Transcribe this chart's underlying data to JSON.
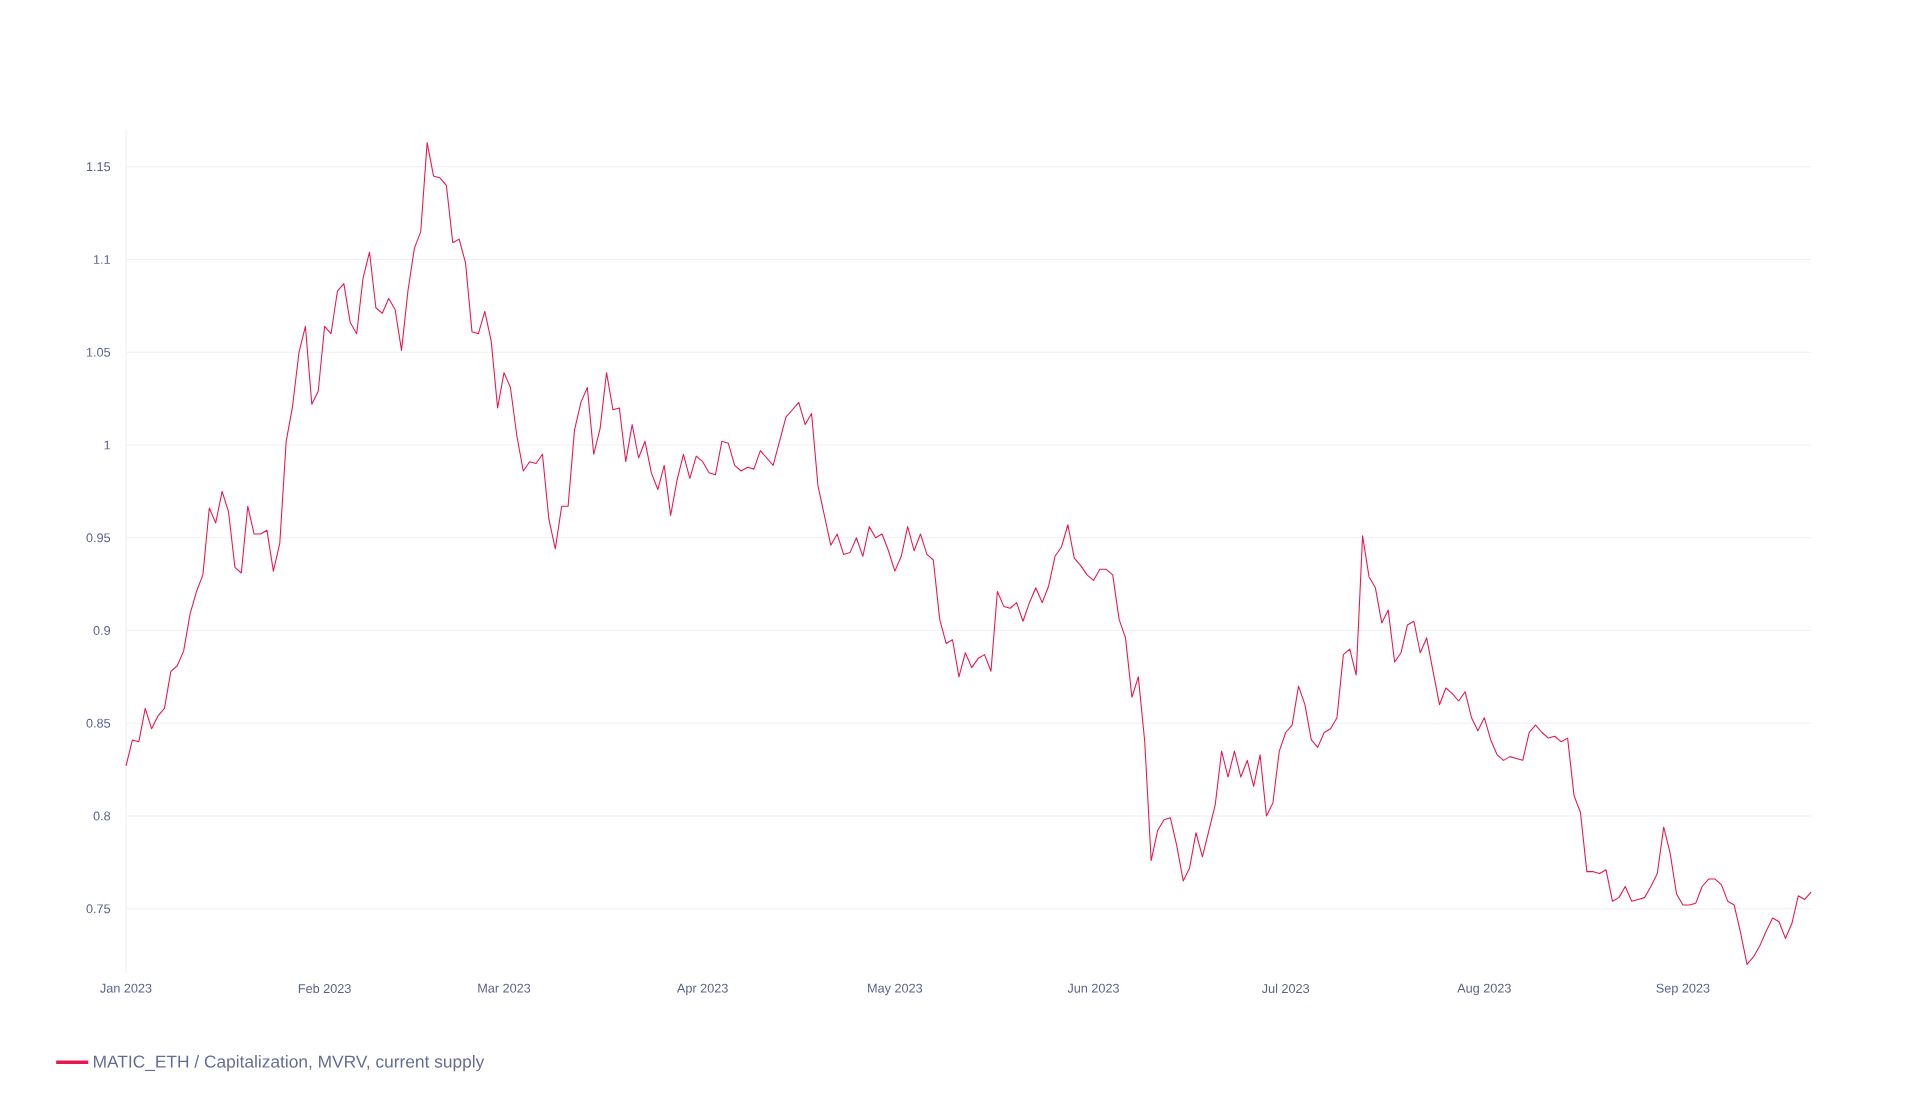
{
  "chart_data": {
    "type": "line",
    "x": [
      "2023-01-01",
      "2023-01-02",
      "2023-01-03",
      "2023-01-04",
      "2023-01-05",
      "2023-01-06",
      "2023-01-07",
      "2023-01-08",
      "2023-01-09",
      "2023-01-10",
      "2023-01-11",
      "2023-01-12",
      "2023-01-13",
      "2023-01-14",
      "2023-01-15",
      "2023-01-16",
      "2023-01-17",
      "2023-01-18",
      "2023-01-19",
      "2023-01-20",
      "2023-01-21",
      "2023-01-22",
      "2023-01-23",
      "2023-01-24",
      "2023-01-25",
      "2023-01-26",
      "2023-01-27",
      "2023-01-28",
      "2023-01-29",
      "2023-01-30",
      "2023-01-31",
      "2023-02-01",
      "2023-02-02",
      "2023-02-03",
      "2023-02-04",
      "2023-02-05",
      "2023-02-06",
      "2023-02-07",
      "2023-02-08",
      "2023-02-09",
      "2023-02-10",
      "2023-02-11",
      "2023-02-12",
      "2023-02-13",
      "2023-02-14",
      "2023-02-15",
      "2023-02-16",
      "2023-02-17",
      "2023-02-18",
      "2023-02-19",
      "2023-02-20",
      "2023-02-21",
      "2023-02-22",
      "2023-02-23",
      "2023-02-24",
      "2023-02-25",
      "2023-02-26",
      "2023-02-27",
      "2023-02-28",
      "2023-03-01",
      "2023-03-02",
      "2023-03-03",
      "2023-03-04",
      "2023-03-05",
      "2023-03-06",
      "2023-03-07",
      "2023-03-08",
      "2023-03-09",
      "2023-03-10",
      "2023-03-11",
      "2023-03-12",
      "2023-03-13",
      "2023-03-14",
      "2023-03-15",
      "2023-03-16",
      "2023-03-17",
      "2023-03-18",
      "2023-03-19",
      "2023-03-20",
      "2023-03-21",
      "2023-03-22",
      "2023-03-23",
      "2023-03-24",
      "2023-03-25",
      "2023-03-26",
      "2023-03-27",
      "2023-03-28",
      "2023-03-29",
      "2023-03-30",
      "2023-03-31",
      "2023-04-01",
      "2023-04-02",
      "2023-04-03",
      "2023-04-04",
      "2023-04-05",
      "2023-04-06",
      "2023-04-07",
      "2023-04-08",
      "2023-04-09",
      "2023-04-10",
      "2023-04-11",
      "2023-04-12",
      "2023-04-13",
      "2023-04-14",
      "2023-04-15",
      "2023-04-16",
      "2023-04-17",
      "2023-04-18",
      "2023-04-19",
      "2023-04-20",
      "2023-04-21",
      "2023-04-22",
      "2023-04-23",
      "2023-04-24",
      "2023-04-25",
      "2023-04-26",
      "2023-04-27",
      "2023-04-28",
      "2023-04-29",
      "2023-04-30",
      "2023-05-01",
      "2023-05-02",
      "2023-05-03",
      "2023-05-04",
      "2023-05-05",
      "2023-05-06",
      "2023-05-07",
      "2023-05-08",
      "2023-05-09",
      "2023-05-10",
      "2023-05-11",
      "2023-05-12",
      "2023-05-13",
      "2023-05-14",
      "2023-05-15",
      "2023-05-16",
      "2023-05-17",
      "2023-05-18",
      "2023-05-19",
      "2023-05-20",
      "2023-05-21",
      "2023-05-22",
      "2023-05-23",
      "2023-05-24",
      "2023-05-25",
      "2023-05-26",
      "2023-05-27",
      "2023-05-28",
      "2023-05-29",
      "2023-05-30",
      "2023-05-31",
      "2023-06-01",
      "2023-06-02",
      "2023-06-03",
      "2023-06-04",
      "2023-06-05",
      "2023-06-06",
      "2023-06-07",
      "2023-06-08",
      "2023-06-09",
      "2023-06-10",
      "2023-06-11",
      "2023-06-12",
      "2023-06-13",
      "2023-06-14",
      "2023-06-15",
      "2023-06-16",
      "2023-06-17",
      "2023-06-18",
      "2023-06-19",
      "2023-06-20",
      "2023-06-21",
      "2023-06-22",
      "2023-06-23",
      "2023-06-24",
      "2023-06-25",
      "2023-06-26",
      "2023-06-27",
      "2023-06-28",
      "2023-06-29",
      "2023-06-30",
      "2023-07-01",
      "2023-07-02",
      "2023-07-03",
      "2023-07-04",
      "2023-07-05",
      "2023-07-06",
      "2023-07-07",
      "2023-07-08",
      "2023-07-09",
      "2023-07-10",
      "2023-07-11",
      "2023-07-12",
      "2023-07-13",
      "2023-07-14",
      "2023-07-15",
      "2023-07-16",
      "2023-07-17",
      "2023-07-18",
      "2023-07-19",
      "2023-07-20",
      "2023-07-21",
      "2023-07-22",
      "2023-07-23",
      "2023-07-24",
      "2023-07-25",
      "2023-07-26",
      "2023-07-27",
      "2023-07-28",
      "2023-07-29",
      "2023-07-30",
      "2023-07-31",
      "2023-08-01",
      "2023-08-02",
      "2023-08-03",
      "2023-08-04",
      "2023-08-05",
      "2023-08-06",
      "2023-08-07",
      "2023-08-08",
      "2023-08-09",
      "2023-08-10",
      "2023-08-11",
      "2023-08-12",
      "2023-08-13",
      "2023-08-14",
      "2023-08-15",
      "2023-08-16",
      "2023-08-17",
      "2023-08-18",
      "2023-08-19",
      "2023-08-20",
      "2023-08-21",
      "2023-08-22",
      "2023-08-23",
      "2023-08-24",
      "2023-08-25",
      "2023-08-26",
      "2023-08-27",
      "2023-08-28",
      "2023-08-29",
      "2023-08-30",
      "2023-08-31",
      "2023-09-01",
      "2023-09-02",
      "2023-09-03",
      "2023-09-04",
      "2023-09-05",
      "2023-09-06",
      "2023-09-07",
      "2023-09-08",
      "2023-09-09",
      "2023-09-10",
      "2023-09-11",
      "2023-09-12",
      "2023-09-13",
      "2023-09-14",
      "2023-09-15",
      "2023-09-16",
      "2023-09-17",
      "2023-09-18",
      "2023-09-19",
      "2023-09-20",
      "2023-09-21"
    ],
    "series": [
      {
        "name": "MATIC_ETH / Capitalization, MVRV, current supply",
        "color": "#e8174f",
        "values": [
          0.827,
          0.841,
          0.84,
          0.858,
          0.847,
          0.854,
          0.858,
          0.878,
          0.881,
          0.889,
          0.909,
          0.921,
          0.93,
          0.966,
          0.958,
          0.975,
          0.964,
          0.934,
          0.931,
          0.967,
          0.952,
          0.952,
          0.954,
          0.932,
          0.947,
          1.002,
          1.021,
          1.05,
          1.064,
          1.022,
          1.029,
          1.064,
          1.06,
          1.083,
          1.087,
          1.066,
          1.06,
          1.09,
          1.104,
          1.074,
          1.071,
          1.079,
          1.073,
          1.051,
          1.083,
          1.106,
          1.115,
          1.163,
          1.145,
          1.144,
          1.14,
          1.109,
          1.111,
          1.098,
          1.061,
          1.06,
          1.072,
          1.056,
          1.02,
          1.039,
          1.031,
          1.005,
          0.986,
          0.991,
          0.99,
          0.995,
          0.96,
          0.944,
          0.967,
          0.967,
          1.008,
          1.023,
          1.031,
          0.995,
          1.009,
          1.039,
          1.019,
          1.02,
          0.991,
          1.011,
          0.993,
          1.002,
          0.985,
          0.976,
          0.989,
          0.962,
          0.981,
          0.995,
          0.982,
          0.994,
          0.991,
          0.985,
          0.984,
          1.002,
          1.001,
          0.989,
          0.986,
          0.988,
          0.987,
          0.997,
          0.993,
          0.989,
          1.002,
          1.015,
          1.019,
          1.023,
          1.011,
          1.017,
          0.978,
          0.962,
          0.946,
          0.952,
          0.941,
          0.942,
          0.95,
          0.94,
          0.956,
          0.95,
          0.952,
          0.943,
          0.932,
          0.94,
          0.956,
          0.943,
          0.952,
          0.941,
          0.938,
          0.906,
          0.893,
          0.895,
          0.875,
          0.888,
          0.88,
          0.885,
          0.887,
          0.878,
          0.921,
          0.913,
          0.912,
          0.915,
          0.905,
          0.915,
          0.923,
          0.915,
          0.924,
          0.94,
          0.945,
          0.957,
          0.939,
          0.935,
          0.93,
          0.927,
          0.933,
          0.933,
          0.93,
          0.906,
          0.896,
          0.864,
          0.875,
          0.84,
          0.776,
          0.792,
          0.798,
          0.799,
          0.784,
          0.765,
          0.772,
          0.791,
          0.778,
          0.792,
          0.806,
          0.835,
          0.821,
          0.835,
          0.821,
          0.83,
          0.816,
          0.833,
          0.8,
          0.807,
          0.835,
          0.845,
          0.849,
          0.87,
          0.86,
          0.841,
          0.837,
          0.845,
          0.847,
          0.853,
          0.887,
          0.89,
          0.876,
          0.951,
          0.929,
          0.923,
          0.904,
          0.911,
          0.883,
          0.888,
          0.903,
          0.905,
          0.888,
          0.896,
          0.878,
          0.86,
          0.869,
          0.866,
          0.862,
          0.867,
          0.853,
          0.846,
          0.853,
          0.841,
          0.833,
          0.83,
          0.832,
          0.831,
          0.83,
          0.845,
          0.849,
          0.845,
          0.842,
          0.843,
          0.84,
          0.842,
          0.811,
          0.802,
          0.77,
          0.77,
          0.769,
          0.771,
          0.754,
          0.756,
          0.762,
          0.754,
          0.755,
          0.756,
          0.762,
          0.769,
          0.794,
          0.78,
          0.758,
          0.752,
          0.752,
          0.753,
          0.762,
          0.766,
          0.766,
          0.763,
          0.754,
          0.752,
          0.737,
          0.72,
          0.724,
          0.73,
          0.738,
          0.745,
          0.743,
          0.734,
          0.742,
          0.757,
          0.755,
          0.759
        ]
      }
    ],
    "xlim": [
      "2023-01-01",
      "2023-09-21"
    ],
    "xticks": [
      {
        "value": "2023-01-01",
        "label": "Jan 2023"
      },
      {
        "value": "2023-02-01",
        "label": "Feb 2023"
      },
      {
        "value": "2023-03-01",
        "label": "Mar 2023"
      },
      {
        "value": "2023-04-01",
        "label": "Apr 2023"
      },
      {
        "value": "2023-05-01",
        "label": "May 2023"
      },
      {
        "value": "2023-06-01",
        "label": "Jun 2023"
      },
      {
        "value": "2023-07-01",
        "label": "Jul 2023"
      },
      {
        "value": "2023-08-01",
        "label": "Aug 2023"
      },
      {
        "value": "2023-09-01",
        "label": "Sep 2023"
      }
    ],
    "ylim": [
      0.715,
      1.17
    ],
    "yticks": [
      0.75,
      0.8,
      0.85,
      0.9,
      0.95,
      1,
      1.05,
      1.1,
      1.15
    ],
    "grid": "y",
    "legend": "bottom left",
    "marker": "none",
    "line_style": "solid"
  }
}
